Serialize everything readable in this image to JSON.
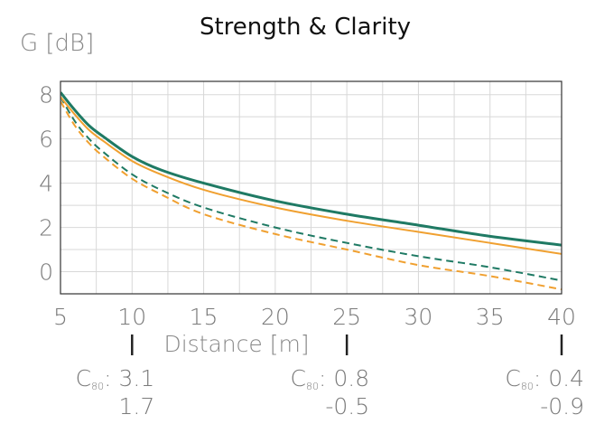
{
  "chart_data": {
    "type": "line",
    "title": "Strength & Clarity",
    "ylabel": "G [dB]",
    "xlabel": "Distance [m]",
    "xlim": [
      5,
      40
    ],
    "ylim": [
      -1,
      8.6
    ],
    "x_ticks": [
      5,
      10,
      15,
      20,
      25,
      30,
      35,
      40
    ],
    "y_ticks": [
      0,
      2,
      4,
      6,
      8
    ],
    "grid": true,
    "colors": {
      "green": "#1f7a64",
      "orange": "#f0a030"
    },
    "series": [
      {
        "style": "solid-green",
        "x": [
          5,
          6,
          7,
          8,
          10,
          12,
          15,
          20,
          25,
          30,
          35,
          40
        ],
        "values": [
          8.1,
          7.3,
          6.6,
          6.1,
          5.2,
          4.6,
          4.0,
          3.2,
          2.6,
          2.1,
          1.6,
          1.2
        ]
      },
      {
        "style": "solid-orange",
        "x": [
          5,
          6,
          7,
          8,
          10,
          12,
          15,
          20,
          25,
          30,
          35,
          40
        ],
        "values": [
          7.9,
          7.1,
          6.4,
          5.9,
          5.0,
          4.4,
          3.7,
          2.9,
          2.3,
          1.8,
          1.3,
          0.8
        ]
      },
      {
        "style": "dashed-green",
        "x": [
          5,
          6,
          7,
          8,
          10,
          12,
          15,
          20,
          25,
          30,
          35,
          40
        ],
        "values": [
          7.9,
          6.8,
          6.0,
          5.4,
          4.4,
          3.7,
          2.9,
          2.0,
          1.3,
          0.7,
          0.2,
          -0.4
        ]
      },
      {
        "style": "dashed-orange",
        "x": [
          5,
          6,
          7,
          8,
          10,
          12,
          15,
          20,
          25,
          30,
          35,
          40
        ],
        "values": [
          7.7,
          6.6,
          5.8,
          5.2,
          4.2,
          3.5,
          2.6,
          1.7,
          1.0,
          0.3,
          -0.2,
          -0.8
        ]
      }
    ],
    "annotations": [
      {
        "x": 10,
        "label": "C",
        "sub": "80",
        "value1": "3.1",
        "value2": "1.7"
      },
      {
        "x": 25,
        "label": "C",
        "sub": "80",
        "value1": "0.8",
        "value2": "-0.5"
      },
      {
        "x": 40,
        "label": "C",
        "sub": "80",
        "value1": "0.4",
        "value2": "-0.9"
      }
    ]
  }
}
